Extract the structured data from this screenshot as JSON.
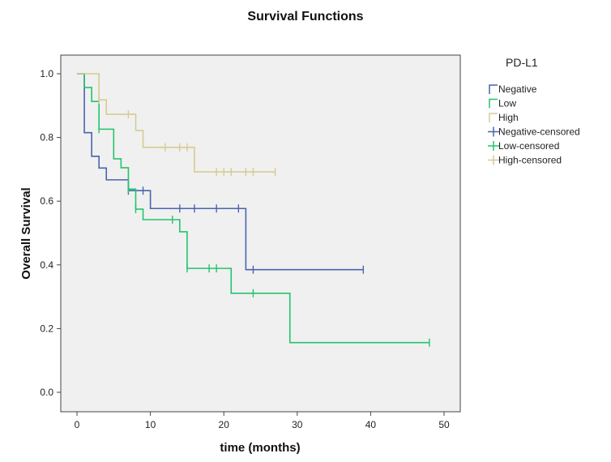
{
  "chart_data": {
    "type": "line",
    "title": "Survival Functions",
    "xlabel": "time (months)",
    "ylabel": "Overall Survival",
    "xlim": [
      -2,
      52
    ],
    "ylim": [
      -0.06,
      1.06
    ],
    "xticks": [
      "0",
      "10",
      "20",
      "30",
      "40",
      "50"
    ],
    "yticks": [
      "0.0",
      "0.2",
      "0.4",
      "0.6",
      "0.8",
      "1.0"
    ],
    "grid": false,
    "legend": {
      "title": "PD-L1",
      "placement": "right",
      "entries": [
        "Negative",
        "Low",
        "High",
        "Negative-censored",
        "Low-censored",
        "High-censored"
      ]
    },
    "series": [
      {
        "name": "Negative",
        "color": "#4a64ad",
        "steps": [
          [
            0,
            1.0
          ],
          [
            1,
            0.815
          ],
          [
            2,
            0.741
          ],
          [
            3,
            0.704
          ],
          [
            4,
            0.667
          ],
          [
            7,
            0.633
          ],
          [
            10,
            0.577
          ],
          [
            23,
            0.385
          ]
        ],
        "end": 39,
        "censored": [
          [
            7,
            0.633
          ],
          [
            9,
            0.633
          ],
          [
            14,
            0.577
          ],
          [
            16,
            0.577
          ],
          [
            19,
            0.577
          ],
          [
            22,
            0.577
          ],
          [
            24,
            0.385
          ],
          [
            39,
            0.385
          ]
        ]
      },
      {
        "name": "Low",
        "color": "#22c46e",
        "steps": [
          [
            0,
            1.0
          ],
          [
            1,
            0.957
          ],
          [
            2,
            0.913
          ],
          [
            3,
            0.826
          ],
          [
            5,
            0.733
          ],
          [
            6,
            0.705
          ],
          [
            7,
            0.638
          ],
          [
            8,
            0.575
          ],
          [
            9,
            0.542
          ],
          [
            14,
            0.504
          ],
          [
            15,
            0.389
          ],
          [
            21,
            0.311
          ],
          [
            29,
            0.156
          ]
        ],
        "end": 48,
        "censored": [
          [
            3,
            0.826
          ],
          [
            7,
            0.638
          ],
          [
            8,
            0.575
          ],
          [
            13,
            0.542
          ],
          [
            15,
            0.389
          ],
          [
            18,
            0.389
          ],
          [
            19,
            0.389
          ],
          [
            24,
            0.311
          ],
          [
            48,
            0.156
          ]
        ]
      },
      {
        "name": "High",
        "color": "#d6cb93",
        "steps": [
          [
            0,
            1.0
          ],
          [
            3,
            0.918
          ],
          [
            4,
            0.873
          ],
          [
            8,
            0.822
          ],
          [
            9,
            0.769
          ],
          [
            16,
            0.692
          ]
        ],
        "end": 27,
        "censored": [
          [
            3,
            0.918
          ],
          [
            7,
            0.873
          ],
          [
            12,
            0.769
          ],
          [
            14,
            0.769
          ],
          [
            15,
            0.769
          ],
          [
            19,
            0.692
          ],
          [
            20,
            0.692
          ],
          [
            21,
            0.692
          ],
          [
            23,
            0.692
          ],
          [
            24,
            0.692
          ],
          [
            27,
            0.692
          ]
        ]
      }
    ]
  }
}
